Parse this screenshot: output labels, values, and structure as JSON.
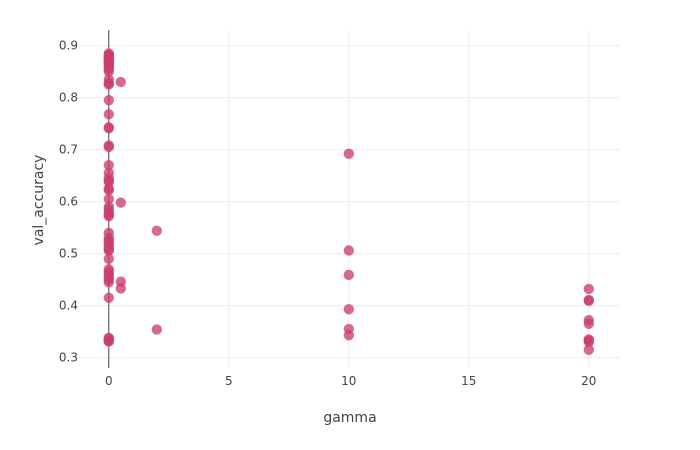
{
  "chart_data": {
    "type": "scatter",
    "title": "",
    "xlabel": "gamma",
    "ylabel": "val_accuracy",
    "xlim": [
      -1.2,
      21.3
    ],
    "ylim": [
      0.28,
      0.93
    ],
    "xticks": [
      0,
      5,
      10,
      15,
      20
    ],
    "xtick_labels": [
      "0",
      "5",
      "10",
      "15",
      "20"
    ],
    "yticks": [
      0.3,
      0.4,
      0.5,
      0.6,
      0.7,
      0.8,
      0.9
    ],
    "ytick_labels": [
      "0.3",
      "0.4",
      "0.5",
      "0.6",
      "0.7",
      "0.8",
      "0.9"
    ],
    "grid": true,
    "zero_line": true,
    "marker_color": "#cc3d6e",
    "series": [
      {
        "x": [
          0,
          0,
          0,
          0,
          0,
          0,
          0,
          0,
          0,
          0,
          0,
          0,
          0,
          0,
          0,
          0,
          0,
          0,
          0,
          0,
          0,
          0,
          0,
          0,
          0,
          0,
          0,
          0,
          0,
          0,
          0,
          0,
          0,
          0,
          0,
          0,
          0,
          0,
          0,
          0,
          0,
          0,
          0,
          0,
          0,
          0,
          0,
          0,
          0,
          0,
          0,
          0,
          0,
          0,
          0,
          0,
          0.5,
          0.5,
          0.5,
          0.5,
          2,
          2,
          10,
          10,
          10,
          10,
          10,
          10,
          20,
          20,
          20,
          20,
          20,
          20,
          20,
          20,
          20
        ],
        "y": [
          0.885,
          0.882,
          0.88,
          0.878,
          0.875,
          0.872,
          0.87,
          0.868,
          0.865,
          0.862,
          0.858,
          0.855,
          0.835,
          0.828,
          0.825,
          0.795,
          0.768,
          0.743,
          0.741,
          0.708,
          0.705,
          0.67,
          0.655,
          0.645,
          0.638,
          0.625,
          0.622,
          0.605,
          0.59,
          0.585,
          0.578,
          0.572,
          0.54,
          0.53,
          0.526,
          0.522,
          0.518,
          0.512,
          0.508,
          0.49,
          0.47,
          0.465,
          0.46,
          0.455,
          0.45,
          0.445,
          0.415,
          0.338,
          0.336,
          0.334,
          0.332,
          0.331,
          0.506,
          0.64,
          0.575,
          0.85,
          0.83,
          0.598,
          0.446,
          0.433,
          0.544,
          0.354,
          0.692,
          0.506,
          0.459,
          0.393,
          0.355,
          0.343,
          0.432,
          0.411,
          0.409,
          0.372,
          0.365,
          0.335,
          0.333,
          0.33,
          0.315
        ]
      }
    ]
  }
}
